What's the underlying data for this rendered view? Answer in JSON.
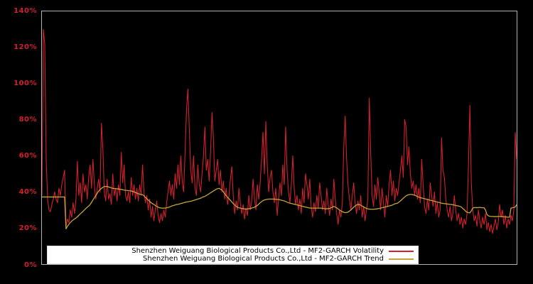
{
  "window": {
    "background": "#000000"
  },
  "axes": {
    "frame_color": "#b3b3b3",
    "tick_label_color": "#d1202e",
    "x_tick_labels_visible": false
  },
  "chart_data": {
    "type": "line",
    "title": "",
    "xlabel": "",
    "ylabel": "",
    "x_description": "time index (unlabeled x-axis, ~336 uniform samples)",
    "ylim": [
      0,
      140
    ],
    "ytick_values": [
      0,
      20,
      40,
      60,
      80,
      100,
      120,
      140
    ],
    "ytick_labels": [
      "0%",
      "20%",
      "40%",
      "60%",
      "80%",
      "100%",
      "120%",
      "140%"
    ],
    "grid": false,
    "legend_position": "lower center",
    "series": [
      {
        "name": "Shenzhen Weiguang Biological Products Co.,Ltd - MF2-GARCH Volatility",
        "color": "#d1202e",
        "stroke_width": 1.1,
        "values": [
          38,
          130,
          122,
          58,
          36,
          30,
          29,
          33,
          36,
          40,
          36,
          34,
          42,
          38,
          44,
          48,
          52,
          21,
          25,
          23,
          30,
          26,
          34,
          28,
          36,
          57,
          38,
          45,
          34,
          50,
          40,
          44,
          36,
          48,
          55,
          42,
          58,
          44,
          36,
          42,
          47,
          40,
          78,
          64,
          40,
          35,
          47,
          36,
          39,
          33,
          50,
          38,
          42,
          35,
          44,
          38,
          62,
          45,
          55,
          38,
          35,
          40,
          34,
          48,
          38,
          44,
          36,
          42,
          35,
          44,
          38,
          55,
          40,
          34,
          38,
          30,
          36,
          26,
          32,
          24,
          30,
          35,
          27,
          23,
          28,
          24,
          30,
          26,
          34,
          40,
          46,
          38,
          44,
          36,
          50,
          42,
          55,
          44,
          60,
          46,
          40,
          62,
          85,
          97,
          75,
          52,
          45,
          60,
          42,
          38,
          55,
          44,
          40,
          50,
          60,
          76,
          52,
          58,
          46,
          62,
          84,
          70,
          46,
          52,
          58,
          44,
          52,
          40,
          46,
          36,
          42,
          33,
          38,
          47,
          54,
          38,
          28,
          35,
          30,
          42,
          34,
          28,
          33,
          25,
          31,
          27,
          38,
          30,
          35,
          47,
          36,
          30,
          44,
          36,
          45,
          58,
          73,
          50,
          79,
          55,
          40,
          48,
          52,
          40,
          34,
          42,
          27,
          36,
          45,
          38,
          55,
          44,
          76,
          52,
          40,
          34,
          44,
          60,
          42,
          33,
          38,
          30,
          36,
          28,
          42,
          34,
          50,
          44,
          36,
          47,
          32,
          26,
          34,
          29,
          38,
          31,
          45,
          38,
          30,
          35,
          28,
          42,
          33,
          27,
          36,
          30,
          47,
          36,
          28,
          22,
          30,
          26,
          34,
          65,
          82,
          58,
          44,
          36,
          30,
          38,
          45,
          34,
          28,
          35,
          30,
          38,
          26,
          32,
          24,
          30,
          36,
          92,
          62,
          38,
          32,
          44,
          36,
          48,
          40,
          30,
          42,
          34,
          26,
          38,
          32,
          44,
          52,
          38,
          46,
          35,
          42,
          38,
          45,
          52,
          60,
          48,
          80,
          76,
          55,
          65,
          50,
          42,
          46,
          38,
          44,
          36,
          42,
          34,
          58,
          44,
          32,
          28,
          36,
          30,
          45,
          38,
          32,
          40,
          28,
          34,
          26,
          30,
          70,
          52,
          48,
          36,
          30,
          26,
          32,
          24,
          28,
          38,
          30,
          24,
          28,
          22,
          26,
          20,
          25,
          22,
          28,
          55,
          88,
          45,
          30,
          24,
          27,
          21,
          30,
          24,
          20,
          26,
          22,
          28,
          19,
          23,
          18,
          22,
          17,
          21,
          25,
          19,
          23,
          33,
          26,
          30,
          22,
          27,
          20,
          25,
          22,
          27,
          24,
          30,
          73,
          58
        ]
      },
      {
        "name": "Shenzhen Weiguang Biological Products Co.,Ltd - MF2-GARCH Trend",
        "color": "#c8a33c",
        "stroke_width": 1.3,
        "values": [
          37.2,
          37.2,
          37.2,
          37.2,
          37.2,
          37.2,
          37.2,
          37.2,
          37.2,
          37.2,
          37.2,
          37.2,
          37.2,
          37.2,
          37.2,
          37.2,
          37.2,
          19.5,
          21,
          22,
          23,
          23.8,
          24.5,
          25,
          25.5,
          26.2,
          27,
          27.8,
          28.5,
          29.2,
          30,
          30.8,
          31.5,
          32.2,
          33,
          34.2,
          35.5,
          36.8,
          38,
          39.2,
          40.5,
          41.2,
          42,
          42.5,
          43,
          43,
          43,
          42.8,
          42.5,
          42.2,
          42,
          41.9,
          41.8,
          41.7,
          41.6,
          41.5,
          41.4,
          41.2,
          41,
          40.9,
          40.8,
          40.7,
          40.6,
          40.5,
          40.3,
          40,
          39.7,
          39.3,
          39,
          38.8,
          38.6,
          38.5,
          37.8,
          37,
          36.2,
          35.5,
          34.8,
          34,
          33.5,
          33,
          32.5,
          32,
          31.6,
          31.2,
          31.1,
          31,
          31,
          31,
          31.2,
          31.4,
          31.6,
          32,
          32.3,
          32.5,
          32.8,
          33,
          33.1,
          33.3,
          33.5,
          33.8,
          34,
          34.2,
          34.4,
          34.5,
          34.7,
          34.8,
          35,
          35.3,
          35.5,
          35.8,
          36,
          36.3,
          36.5,
          37,
          37.3,
          37.5,
          38,
          38.5,
          39,
          39.5,
          40,
          40.5,
          41,
          41.5,
          41.8,
          42,
          41.5,
          41,
          40,
          39,
          38,
          37,
          36.2,
          35.3,
          34.4,
          33.5,
          32.8,
          32,
          31.6,
          31.2,
          31,
          30.8,
          30.7,
          30.6,
          30.5,
          30.6,
          30.7,
          30.8,
          31,
          31.3,
          31.5,
          32,
          32.5,
          33.2,
          34,
          34.6,
          35.2,
          35.5,
          35.8,
          35.9,
          36,
          36,
          36,
          36,
          36,
          35.9,
          35.9,
          35.8,
          35.6,
          35.4,
          35.2,
          35,
          34.7,
          34.3,
          34,
          33.8,
          33.6,
          33.4,
          33.2,
          33,
          32.8,
          32.6,
          32.4,
          32.2,
          32,
          31.8,
          31.6,
          31.4,
          31.2,
          31.1,
          31,
          31,
          31,
          31,
          31,
          31,
          31,
          31,
          30.9,
          30.8,
          30.6,
          30.7,
          30.7,
          30.8,
          31.2,
          31.6,
          32,
          31.6,
          31.2,
          30.6,
          30,
          29.5,
          29,
          28.7,
          28.5,
          28.6,
          28.8,
          29.4,
          30,
          30.8,
          31.5,
          32.2,
          32.8,
          33,
          33,
          32.6,
          32.2,
          31.7,
          31.2,
          30.9,
          30.6,
          30.5,
          30.4,
          30.4,
          30.4,
          30.5,
          30.5,
          30.7,
          30.8,
          31,
          31.2,
          31.4,
          31.6,
          31.8,
          32,
          32.2,
          32.4,
          32.6,
          33,
          33.4,
          33.6,
          33.8,
          34.4,
          35,
          35.8,
          36.5,
          37.2,
          37.8,
          38.2,
          38.5,
          38.6,
          38.6,
          38.4,
          38.2,
          37.8,
          37.4,
          37.1,
          36.8,
          36.6,
          36.4,
          36.2,
          36,
          35.9,
          35.6,
          35.4,
          35.2,
          35,
          34.8,
          34.6,
          34.4,
          34.2,
          34,
          33.8,
          33.6,
          33.5,
          33.4,
          33.3,
          33.2,
          33.1,
          33,
          32.9,
          32.7,
          32.5,
          32.3,
          32.2,
          32,
          31.6,
          30.8,
          30.2,
          29.3,
          28.7,
          28.5,
          28.4,
          29.5,
          31,
          31.3,
          31.3,
          31.3,
          31.3,
          31.4,
          31.3,
          31.2,
          31.2,
          30,
          27.5,
          26.8,
          26.5,
          26.4,
          26.4,
          26.3,
          26.3,
          26.3,
          26.4,
          26.4,
          26.3,
          26.3,
          26.2,
          26.2,
          26.1,
          26,
          26,
          31,
          31.2,
          31.4,
          31.6,
          33
        ]
      }
    ]
  }
}
